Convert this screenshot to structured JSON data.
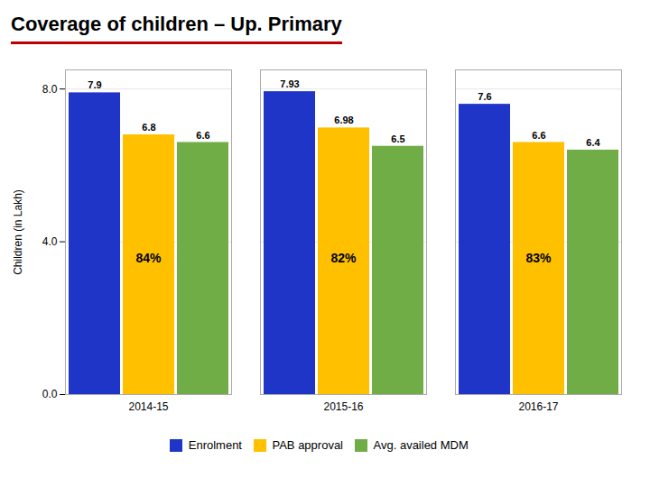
{
  "chart_data": {
    "type": "bar",
    "title": "Coverage of children – Up. Primary",
    "ylabel": "Children (in Lakh)",
    "categories": [
      "2014-15",
      "2015-16",
      "2016-17"
    ],
    "series": [
      {
        "name": "Enrolment",
        "color": "#1F35C8",
        "values": [
          7.9,
          7.93,
          7.6
        ]
      },
      {
        "name": "PAB approval",
        "color": "#FFC000",
        "values": [
          6.8,
          6.98,
          6.6
        ]
      },
      {
        "name": "Avg. availed MDM",
        "color": "#70AD47",
        "values": [
          6.6,
          6.5,
          6.4
        ]
      }
    ],
    "annotations": [
      {
        "text": "84%",
        "category": "2014-15"
      },
      {
        "text": "82%",
        "category": "2015-16"
      },
      {
        "text": "83%",
        "category": "2016-17"
      }
    ],
    "ylim": [
      0.0,
      8.5
    ],
    "yticks": [
      {
        "value": 0,
        "label": "0.0"
      },
      {
        "value": 4,
        "label": "4.0"
      },
      {
        "value": 8,
        "label": "8.0"
      }
    ],
    "grid": true,
    "legend": "bottom",
    "data_labels": true
  }
}
